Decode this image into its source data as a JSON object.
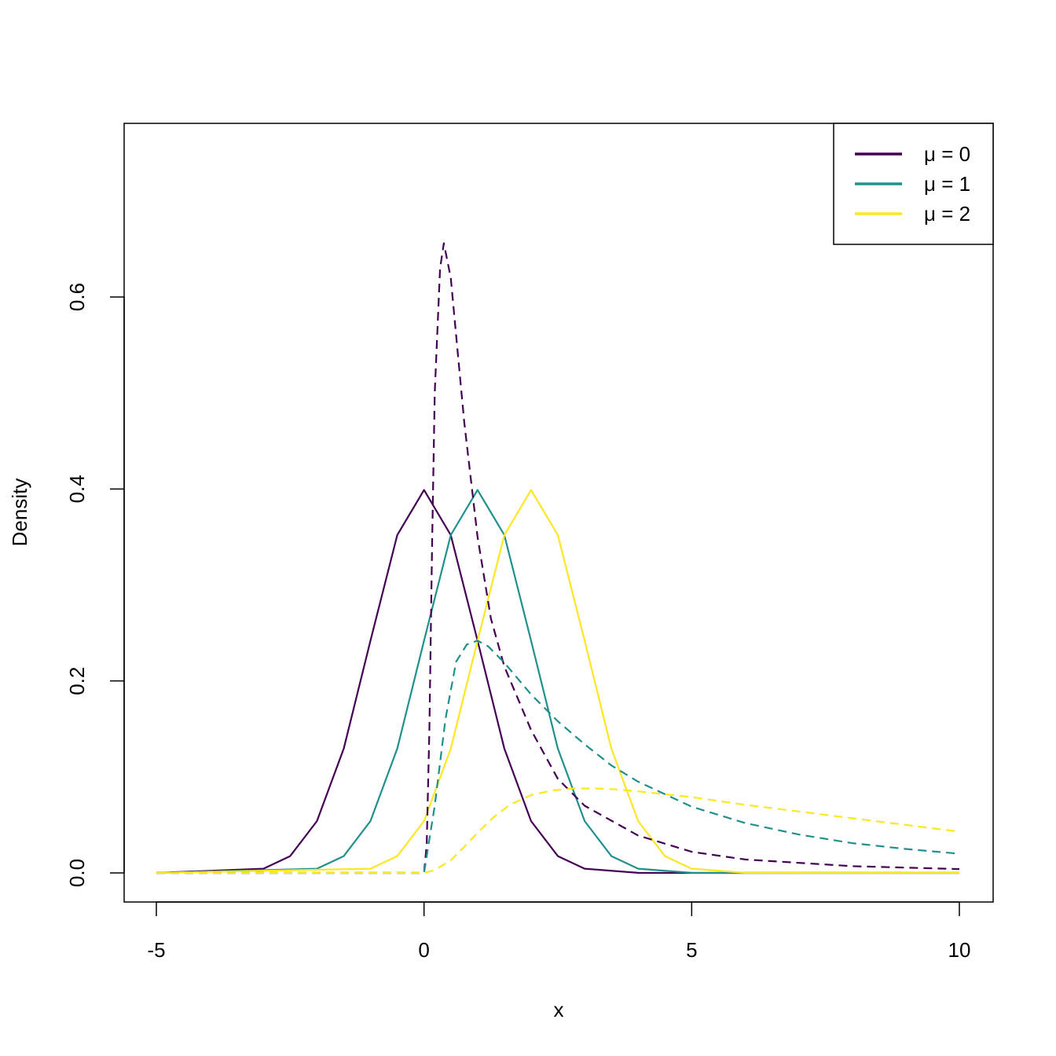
{
  "chart_data": {
    "type": "line",
    "title": "",
    "xlabel": "x",
    "ylabel": "Density",
    "xlim": [
      -5,
      10
    ],
    "ylim": [
      0,
      0.7
    ],
    "x_ticks": [
      -5,
      0,
      5,
      10
    ],
    "x_tick_labels": [
      "-5",
      "0",
      "5",
      "10"
    ],
    "y_ticks": [
      0.0,
      0.2,
      0.4,
      0.6
    ],
    "y_tick_labels": [
      "0.0",
      "0.2",
      "0.4",
      "0.6"
    ],
    "grid": false,
    "legend": {
      "position": "top-right",
      "entries": [
        {
          "label": "μ = 0",
          "color": "#440154"
        },
        {
          "label": "μ = 1",
          "color": "#21908C"
        },
        {
          "label": "μ = 2",
          "color": "#FDE725"
        }
      ]
    },
    "series": [
      {
        "color": "#440154",
        "dash": "solid",
        "x": [
          -5,
          -3,
          -2.5,
          -2,
          -1.5,
          -1,
          -0.5,
          0,
          0.5,
          1,
          1.5,
          2,
          2.5,
          3,
          4,
          5,
          10
        ],
        "y": [
          0.0,
          0.0044,
          0.0175,
          0.054,
          0.1295,
          0.242,
          0.352,
          0.399,
          0.352,
          0.242,
          0.1295,
          0.054,
          0.0175,
          0.0044,
          0.0001,
          0.0,
          0.0
        ]
      },
      {
        "color": "#21908C",
        "dash": "solid",
        "x": [
          -5,
          -2,
          -1.5,
          -1,
          -0.5,
          0,
          0.5,
          1,
          1.5,
          2,
          2.5,
          3,
          3.5,
          4,
          5,
          6,
          10
        ],
        "y": [
          0.0,
          0.0044,
          0.0175,
          0.054,
          0.1295,
          0.242,
          0.352,
          0.399,
          0.352,
          0.242,
          0.1295,
          0.054,
          0.0175,
          0.0044,
          0.0001,
          0.0,
          0.0
        ]
      },
      {
        "color": "#FDE725",
        "dash": "solid",
        "x": [
          -5,
          -1,
          -0.5,
          0,
          0.5,
          1,
          1.5,
          2,
          2.5,
          3,
          3.5,
          4,
          4.5,
          5,
          6,
          7,
          10
        ],
        "y": [
          0.0,
          0.0044,
          0.0175,
          0.054,
          0.1295,
          0.242,
          0.352,
          0.399,
          0.352,
          0.242,
          0.1295,
          0.054,
          0.0175,
          0.0044,
          0.0001,
          0.0,
          0.0
        ]
      },
      {
        "color": "#440154",
        "dash": "dashed",
        "x": [
          -5,
          0,
          0.05,
          0.1,
          0.15,
          0.2,
          0.3,
          0.37,
          0.5,
          0.75,
          1,
          1.25,
          1.5,
          2,
          2.5,
          3,
          4,
          5,
          6,
          8,
          10
        ],
        "y": [
          0.0,
          0.0,
          0.03,
          0.15,
          0.34,
          0.5,
          0.63,
          0.656,
          0.62,
          0.47,
          0.35,
          0.265,
          0.215,
          0.149,
          0.098,
          0.07,
          0.039,
          0.022,
          0.014,
          0.007,
          0.004
        ]
      },
      {
        "color": "#21908C",
        "dash": "dashed",
        "x": [
          -5,
          0,
          0.2,
          0.4,
          0.6,
          0.8,
          1,
          1.2,
          1.5,
          2,
          2.5,
          3,
          3.5,
          4,
          5,
          6,
          7,
          8,
          9,
          10
        ],
        "y": [
          0.0,
          0.0,
          0.07,
          0.16,
          0.22,
          0.238,
          0.242,
          0.236,
          0.219,
          0.186,
          0.158,
          0.134,
          0.112,
          0.095,
          0.069,
          0.052,
          0.04,
          0.031,
          0.025,
          0.02
        ]
      },
      {
        "color": "#FDE725",
        "dash": "dashed",
        "x": [
          -5,
          0,
          0.2,
          0.5,
          0.8,
          1,
          1.3,
          1.6,
          2,
          2.4,
          2.8,
          3.2,
          3.6,
          4,
          5,
          6,
          7,
          8,
          9,
          10
        ],
        "y": [
          0.0,
          0.0,
          0.003,
          0.013,
          0.03,
          0.042,
          0.058,
          0.071,
          0.081,
          0.086,
          0.088,
          0.088,
          0.087,
          0.085,
          0.079,
          0.071,
          0.064,
          0.057,
          0.05,
          0.043
        ]
      }
    ]
  }
}
